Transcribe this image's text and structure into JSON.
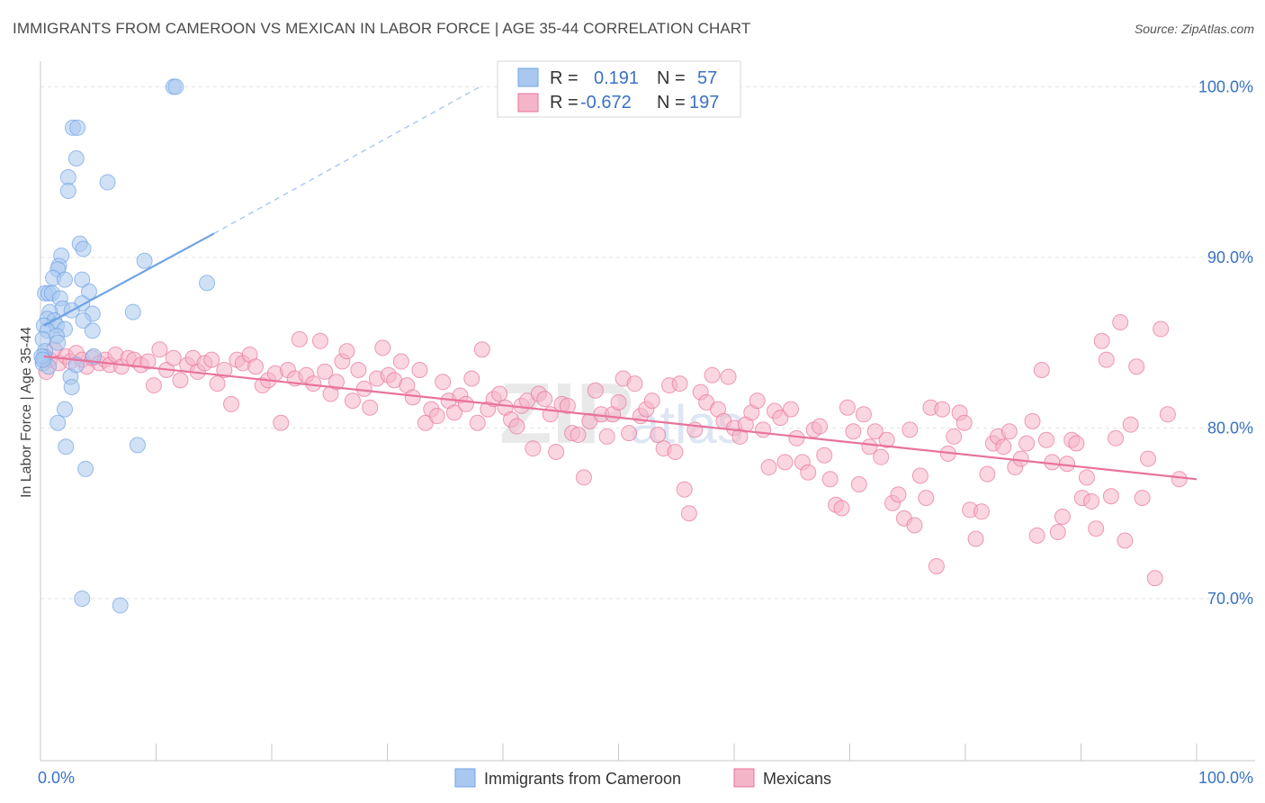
{
  "header": {
    "title": "IMMIGRANTS FROM CAMEROON VS MEXICAN IN LABOR FORCE | AGE 35-44 CORRELATION CHART",
    "source": "Source: ZipAtlas.com"
  },
  "watermark": {
    "zip": "ZIP",
    "atlas": "atlas"
  },
  "legend_box": {
    "rows": [
      {
        "r_label": "R =",
        "r_value": " 0.191",
        "n_label": "N =",
        "n_value": "57",
        "color": "#a9c8ef"
      },
      {
        "r_label": "R =",
        "r_value": "-0.672",
        "n_label": "N =",
        "n_value": "197",
        "color": "#f5b5c9"
      }
    ]
  },
  "bottom_legend": {
    "items": [
      {
        "label": "Immigrants from Cameroon",
        "color": "#a9c8ef"
      },
      {
        "label": "Mexicans",
        "color": "#f5b5c9"
      }
    ]
  },
  "chart_data": {
    "type": "scatter",
    "title": "IMMIGRANTS FROM CAMEROON VS MEXICAN IN LABOR FORCE | AGE 35-44 CORRELATION CHART",
    "xlabel": "",
    "ylabel": "In Labor Force | Age 35-44",
    "xlim": [
      0,
      100
    ],
    "ylim": [
      60.5,
      101.5
    ],
    "x_tick_labels": [
      "0.0%",
      "100.0%"
    ],
    "y_ticks": [
      70,
      80,
      90,
      100
    ],
    "y_tick_labels": [
      "70.0%",
      "80.0%",
      "90.0%",
      "100.0%"
    ],
    "grid": true,
    "legend_position": "top-center",
    "series": [
      {
        "name": "Immigrants from Cameroon",
        "color": "#6fa3e6",
        "fill": "#a9c8ef",
        "r": 0.191,
        "n": 57,
        "trend": {
          "x0": 0.3,
          "y0": 86.0,
          "x1": 15.0,
          "y1": 91.4,
          "dashed_to_x": 38.0,
          "dashed_to_y": 100.0
        },
        "points": [
          [
            11.5,
            100.0
          ],
          [
            11.7,
            100.0
          ],
          [
            2.8,
            97.6
          ],
          [
            3.2,
            97.6
          ],
          [
            3.1,
            95.8
          ],
          [
            2.4,
            94.7
          ],
          [
            5.8,
            94.4
          ],
          [
            2.4,
            93.9
          ],
          [
            3.4,
            90.8
          ],
          [
            3.7,
            90.5
          ],
          [
            1.8,
            90.1
          ],
          [
            9.0,
            89.8
          ],
          [
            1.6,
            89.5
          ],
          [
            1.5,
            89.3
          ],
          [
            1.1,
            88.8
          ],
          [
            2.1,
            88.7
          ],
          [
            3.6,
            88.7
          ],
          [
            14.4,
            88.5
          ],
          [
            0.4,
            87.9
          ],
          [
            0.7,
            87.9
          ],
          [
            1.0,
            87.9
          ],
          [
            1.7,
            87.6
          ],
          [
            4.2,
            88.0
          ],
          [
            3.6,
            87.3
          ],
          [
            1.9,
            87.0
          ],
          [
            0.8,
            86.8
          ],
          [
            2.7,
            86.9
          ],
          [
            8.0,
            86.8
          ],
          [
            4.5,
            86.7
          ],
          [
            0.6,
            86.4
          ],
          [
            1.2,
            86.3
          ],
          [
            3.7,
            86.3
          ],
          [
            0.3,
            86.0
          ],
          [
            1.4,
            86.0
          ],
          [
            2.1,
            85.8
          ],
          [
            0.6,
            85.7
          ],
          [
            4.5,
            85.7
          ],
          [
            1.4,
            85.4
          ],
          [
            0.2,
            85.2
          ],
          [
            1.5,
            85.0
          ],
          [
            0.4,
            84.5
          ],
          [
            0.3,
            84.2
          ],
          [
            0.2,
            83.8
          ],
          [
            0.7,
            83.6
          ],
          [
            2.6,
            83.0
          ],
          [
            3.1,
            83.7
          ],
          [
            4.6,
            84.2
          ],
          [
            2.7,
            82.4
          ],
          [
            2.1,
            81.1
          ],
          [
            1.5,
            80.3
          ],
          [
            2.2,
            78.9
          ],
          [
            8.4,
            79.0
          ],
          [
            3.9,
            77.6
          ],
          [
            3.6,
            70.0
          ],
          [
            6.9,
            69.6
          ],
          [
            0.1,
            84.2
          ],
          [
            0.2,
            84.0
          ]
        ]
      },
      {
        "name": "Mexicans",
        "color": "#e8739b",
        "fill": "#f5b5c9",
        "r": -0.672,
        "n": 197,
        "trend": {
          "x0": 0.3,
          "y0": 84.2,
          "x1": 100.0,
          "y1": 77.0
        },
        "points": [
          [
            0.5,
            83.3
          ],
          [
            0.8,
            84.0
          ],
          [
            1.2,
            84.6
          ],
          [
            1.6,
            83.8
          ],
          [
            2.2,
            84.2
          ],
          [
            2.6,
            83.9
          ],
          [
            3.1,
            84.4
          ],
          [
            3.6,
            84.0
          ],
          [
            4.0,
            83.6
          ],
          [
            4.5,
            84.1
          ],
          [
            5.1,
            83.8
          ],
          [
            5.6,
            84.0
          ],
          [
            6.0,
            83.7
          ],
          [
            6.5,
            84.3
          ],
          [
            7.0,
            83.6
          ],
          [
            7.6,
            84.1
          ],
          [
            8.1,
            84.0
          ],
          [
            8.7,
            83.7
          ],
          [
            9.3,
            83.9
          ],
          [
            9.8,
            82.5
          ],
          [
            10.3,
            84.6
          ],
          [
            10.9,
            83.4
          ],
          [
            11.5,
            84.1
          ],
          [
            12.1,
            82.8
          ],
          [
            12.7,
            83.7
          ],
          [
            13.2,
            84.1
          ],
          [
            13.6,
            83.3
          ],
          [
            14.2,
            83.8
          ],
          [
            14.8,
            84.0
          ],
          [
            15.3,
            82.6
          ],
          [
            15.9,
            83.4
          ],
          [
            16.5,
            81.4
          ],
          [
            17.0,
            84.0
          ],
          [
            17.5,
            83.8
          ],
          [
            18.1,
            84.3
          ],
          [
            18.6,
            83.6
          ],
          [
            19.2,
            82.5
          ],
          [
            19.7,
            82.8
          ],
          [
            20.3,
            83.2
          ],
          [
            20.8,
            80.3
          ],
          [
            21.4,
            83.4
          ],
          [
            22.0,
            82.9
          ],
          [
            22.4,
            85.2
          ],
          [
            23.0,
            83.1
          ],
          [
            23.6,
            82.6
          ],
          [
            24.2,
            85.1
          ],
          [
            24.6,
            83.3
          ],
          [
            25.1,
            82.0
          ],
          [
            25.6,
            82.7
          ],
          [
            26.1,
            83.9
          ],
          [
            26.5,
            84.5
          ],
          [
            27.0,
            81.6
          ],
          [
            27.5,
            83.4
          ],
          [
            28.0,
            82.3
          ],
          [
            28.5,
            81.2
          ],
          [
            29.1,
            82.9
          ],
          [
            29.6,
            84.7
          ],
          [
            30.1,
            83.1
          ],
          [
            30.6,
            82.8
          ],
          [
            31.2,
            83.9
          ],
          [
            31.7,
            82.5
          ],
          [
            32.2,
            81.8
          ],
          [
            32.8,
            83.4
          ],
          [
            33.3,
            80.3
          ],
          [
            33.8,
            81.1
          ],
          [
            34.3,
            80.7
          ],
          [
            34.8,
            82.7
          ],
          [
            35.3,
            81.6
          ],
          [
            35.8,
            80.9
          ],
          [
            36.3,
            81.9
          ],
          [
            36.8,
            81.4
          ],
          [
            37.3,
            82.9
          ],
          [
            37.8,
            80.3
          ],
          [
            38.2,
            84.6
          ],
          [
            38.7,
            81.1
          ],
          [
            39.2,
            81.7
          ],
          [
            39.7,
            82.0
          ],
          [
            40.2,
            81.2
          ],
          [
            40.7,
            80.5
          ],
          [
            41.2,
            80.1
          ],
          [
            41.6,
            81.3
          ],
          [
            42.1,
            81.6
          ],
          [
            42.6,
            78.8
          ],
          [
            43.1,
            82.0
          ],
          [
            43.6,
            81.7
          ],
          [
            44.1,
            80.8
          ],
          [
            44.6,
            78.6
          ],
          [
            45.1,
            81.4
          ],
          [
            45.6,
            81.3
          ],
          [
            46.0,
            79.7
          ],
          [
            46.5,
            79.6
          ],
          [
            47.0,
            77.1
          ],
          [
            47.5,
            80.4
          ],
          [
            48.0,
            82.2
          ],
          [
            48.5,
            80.8
          ],
          [
            49.0,
            79.5
          ],
          [
            49.5,
            80.8
          ],
          [
            50.0,
            81.5
          ],
          [
            50.4,
            82.9
          ],
          [
            50.9,
            79.7
          ],
          [
            51.4,
            82.6
          ],
          [
            51.9,
            80.7
          ],
          [
            52.4,
            81.1
          ],
          [
            52.9,
            81.6
          ],
          [
            53.4,
            79.6
          ],
          [
            53.9,
            78.8
          ],
          [
            54.4,
            82.5
          ],
          [
            54.9,
            78.6
          ],
          [
            55.3,
            82.6
          ],
          [
            55.7,
            76.4
          ],
          [
            56.1,
            75.0
          ],
          [
            56.6,
            79.9
          ],
          [
            57.1,
            82.1
          ],
          [
            57.6,
            81.5
          ],
          [
            58.1,
            83.1
          ],
          [
            58.6,
            81.1
          ],
          [
            59.1,
            80.4
          ],
          [
            59.5,
            83.0
          ],
          [
            60.0,
            80.0
          ],
          [
            60.5,
            79.5
          ],
          [
            61.0,
            80.2
          ],
          [
            61.5,
            80.9
          ],
          [
            62.0,
            81.6
          ],
          [
            62.5,
            79.9
          ],
          [
            63.0,
            77.7
          ],
          [
            63.5,
            81.0
          ],
          [
            64.0,
            80.6
          ],
          [
            64.4,
            78.0
          ],
          [
            64.9,
            81.1
          ],
          [
            65.4,
            79.4
          ],
          [
            65.9,
            78.0
          ],
          [
            66.4,
            77.4
          ],
          [
            66.9,
            79.9
          ],
          [
            67.4,
            80.1
          ],
          [
            67.8,
            78.4
          ],
          [
            68.3,
            77.0
          ],
          [
            68.8,
            75.5
          ],
          [
            69.3,
            75.3
          ],
          [
            69.8,
            81.2
          ],
          [
            70.3,
            79.8
          ],
          [
            70.8,
            76.7
          ],
          [
            71.2,
            80.8
          ],
          [
            71.7,
            78.9
          ],
          [
            72.2,
            79.8
          ],
          [
            72.7,
            78.3
          ],
          [
            73.2,
            79.3
          ],
          [
            73.7,
            75.6
          ],
          [
            74.2,
            76.1
          ],
          [
            74.7,
            74.7
          ],
          [
            75.2,
            79.9
          ],
          [
            75.6,
            74.3
          ],
          [
            76.1,
            77.2
          ],
          [
            76.6,
            75.9
          ],
          [
            77.0,
            81.2
          ],
          [
            77.5,
            71.9
          ],
          [
            78.0,
            81.1
          ],
          [
            78.5,
            78.5
          ],
          [
            79.0,
            79.5
          ],
          [
            79.5,
            80.9
          ],
          [
            79.9,
            80.3
          ],
          [
            80.4,
            75.2
          ],
          [
            80.9,
            73.5
          ],
          [
            81.4,
            75.1
          ],
          [
            81.9,
            77.3
          ],
          [
            82.4,
            79.1
          ],
          [
            82.8,
            79.5
          ],
          [
            83.3,
            78.9
          ],
          [
            83.8,
            79.8
          ],
          [
            84.3,
            77.7
          ],
          [
            84.8,
            78.2
          ],
          [
            85.3,
            79.1
          ],
          [
            85.8,
            80.4
          ],
          [
            86.2,
            73.7
          ],
          [
            86.6,
            83.4
          ],
          [
            87.0,
            79.3
          ],
          [
            87.5,
            78.0
          ],
          [
            88.0,
            73.9
          ],
          [
            88.4,
            74.8
          ],
          [
            88.8,
            77.9
          ],
          [
            89.2,
            79.3
          ],
          [
            89.6,
            79.1
          ],
          [
            90.1,
            75.9
          ],
          [
            90.5,
            77.1
          ],
          [
            90.9,
            75.7
          ],
          [
            91.3,
            74.1
          ],
          [
            91.8,
            85.1
          ],
          [
            92.2,
            84.0
          ],
          [
            92.6,
            76.0
          ],
          [
            93.0,
            79.4
          ],
          [
            93.4,
            86.2
          ],
          [
            93.8,
            73.4
          ],
          [
            94.3,
            80.2
          ],
          [
            94.8,
            83.6
          ],
          [
            95.3,
            75.9
          ],
          [
            95.8,
            78.2
          ],
          [
            96.4,
            71.2
          ],
          [
            96.9,
            85.8
          ],
          [
            97.5,
            80.8
          ],
          [
            98.5,
            77.0
          ]
        ]
      }
    ]
  }
}
